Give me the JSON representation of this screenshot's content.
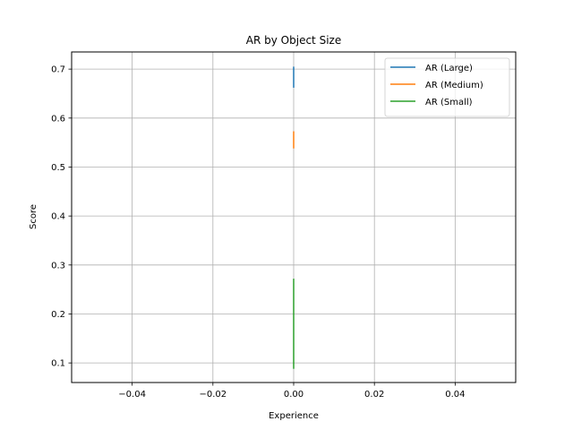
{
  "chart_data": {
    "type": "line",
    "title": "AR by Object Size",
    "xlabel": "Experience",
    "ylabel": "Score",
    "xlim": [
      -0.055,
      0.055
    ],
    "ylim": [
      0.06,
      0.735
    ],
    "x_ticks": [
      -0.04,
      -0.02,
      0.0,
      0.02,
      0.04
    ],
    "x_tick_labels": [
      "−0.04",
      "−0.02",
      "0.00",
      "0.02",
      "0.04"
    ],
    "y_ticks": [
      0.1,
      0.2,
      0.3,
      0.4,
      0.5,
      0.6,
      0.7
    ],
    "y_tick_labels": [
      "0.1",
      "0.2",
      "0.3",
      "0.4",
      "0.5",
      "0.6",
      "0.7"
    ],
    "grid": true,
    "legend_position": "top-right",
    "series": [
      {
        "name": "AR (Large)",
        "color": "#1f77b4",
        "x": [
          0,
          0
        ],
        "y": [
          0.662,
          0.705
        ]
      },
      {
        "name": "AR (Medium)",
        "color": "#ff7f0e",
        "x": [
          0,
          0
        ],
        "y": [
          0.538,
          0.573
        ]
      },
      {
        "name": "AR (Small)",
        "color": "#2ca02c",
        "x": [
          0,
          0
        ],
        "y": [
          0.088,
          0.272
        ]
      }
    ]
  }
}
